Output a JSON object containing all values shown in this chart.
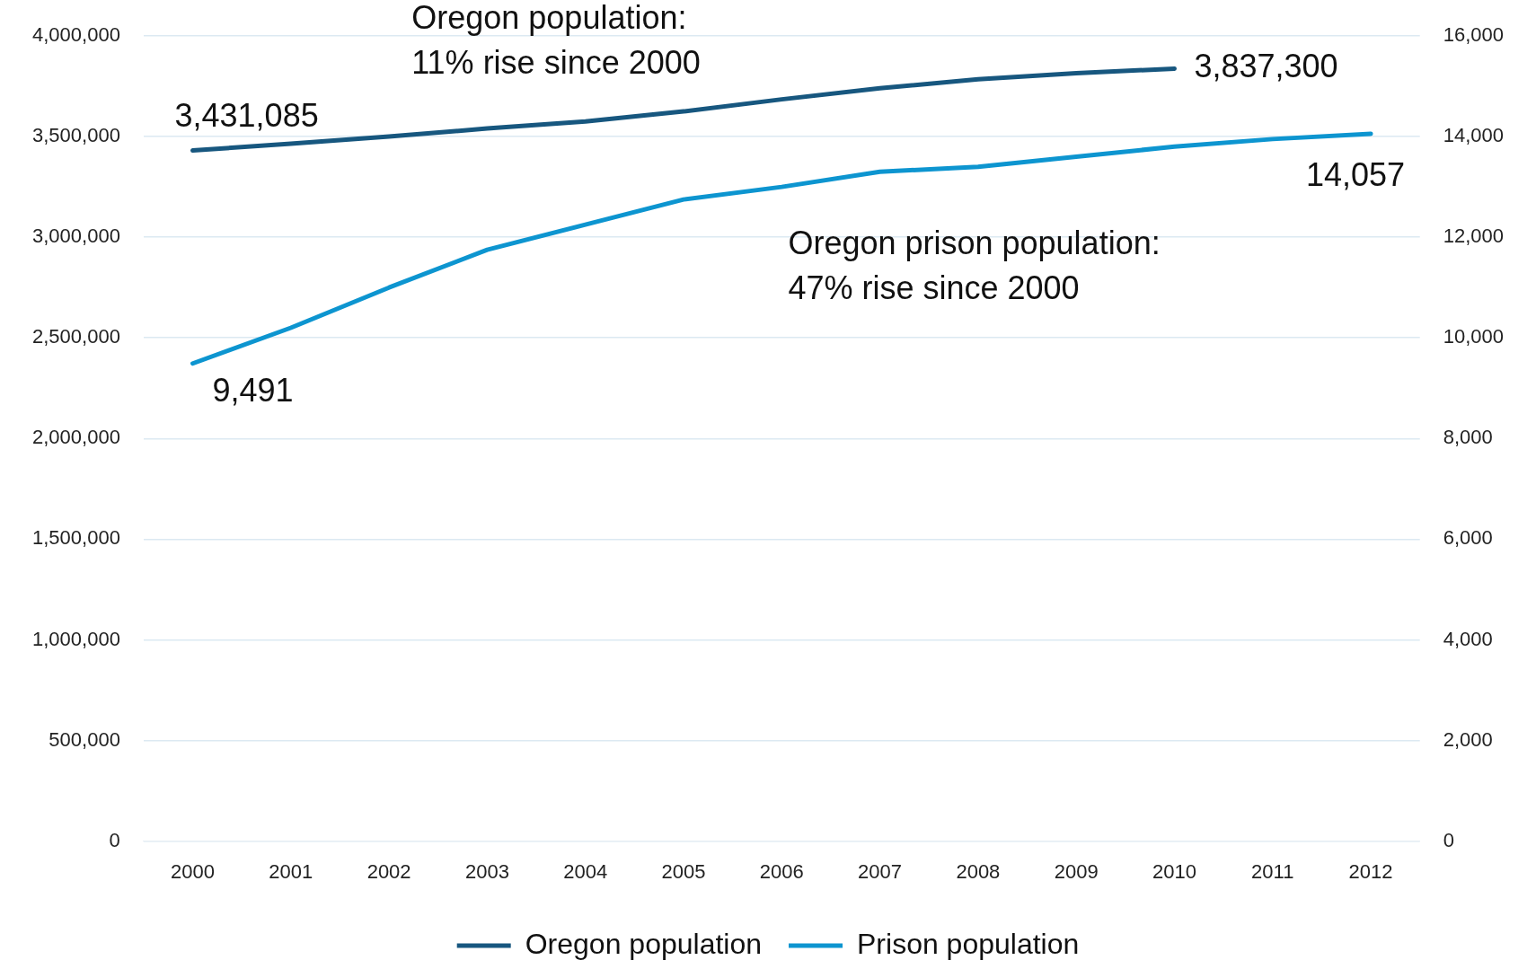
{
  "chart_data": {
    "type": "line",
    "categories": [
      "2000",
      "2001",
      "2002",
      "2003",
      "2004",
      "2005",
      "2006",
      "2007",
      "2008",
      "2009",
      "2010",
      "2011",
      "2012"
    ],
    "series": [
      {
        "name": "Oregon population",
        "color": "#17577f",
        "values": [
          3431085,
          3465000,
          3500000,
          3540000,
          3575000,
          3625000,
          3685000,
          3740000,
          3785000,
          3815000,
          3837300,
          null,
          null
        ],
        "value_labels": [
          "3,431,085",
          null,
          null,
          null,
          null,
          null,
          null,
          null,
          null,
          null,
          "3,837,300",
          null,
          null
        ]
      },
      {
        "name": "Prison population",
        "color": "#0d95d0",
        "axis": "y2",
        "values": [
          9491,
          10200,
          11000,
          11750,
          12250,
          12750,
          13000,
          13300,
          13400,
          13600,
          13800,
          13950,
          14057
        ],
        "value_labels": [
          "9,491",
          null,
          null,
          null,
          null,
          null,
          null,
          null,
          null,
          null,
          null,
          null,
          "14,057"
        ]
      }
    ],
    "ylim": [
      0,
      4000000
    ],
    "yticks": [
      0,
      {
        "value": 500000,
        "label": "500,000"
      },
      {
        "value": 1000000,
        "label": "1,000,000"
      },
      {
        "value": 1500000,
        "label": "1,500,000"
      },
      {
        "value": 2000000,
        "label": "2,000,000"
      },
      {
        "value": 2500000,
        "label": "2,500,000"
      },
      {
        "value": 3000000,
        "label": "3,000,000"
      },
      {
        "value": 3500000,
        "label": "3,500,000"
      },
      {
        "value": 4000000,
        "label": "4,000,000"
      }
    ],
    "y2lim": [
      0,
      16000
    ],
    "y2ticks": [
      0,
      {
        "value": 2000,
        "label": "2,000"
      },
      {
        "value": 4000,
        "label": "4,000"
      },
      {
        "value": 6000,
        "label": "6,000"
      },
      {
        "value": 8000,
        "label": "8,000"
      },
      {
        "value": 10000,
        "label": "10,000"
      },
      {
        "value": 12000,
        "label": "12,000"
      },
      {
        "value": 14000,
        "label": "14,000"
      },
      {
        "value": 16000,
        "label": "16,000"
      }
    ],
    "annotations": [
      "Oregon population:\n11% rise since 2000",
      "Oregon prison population:\n47% rise since 2000"
    ],
    "grid": "y",
    "legend": "bottom",
    "marker": "none",
    "line_style": "solid"
  }
}
